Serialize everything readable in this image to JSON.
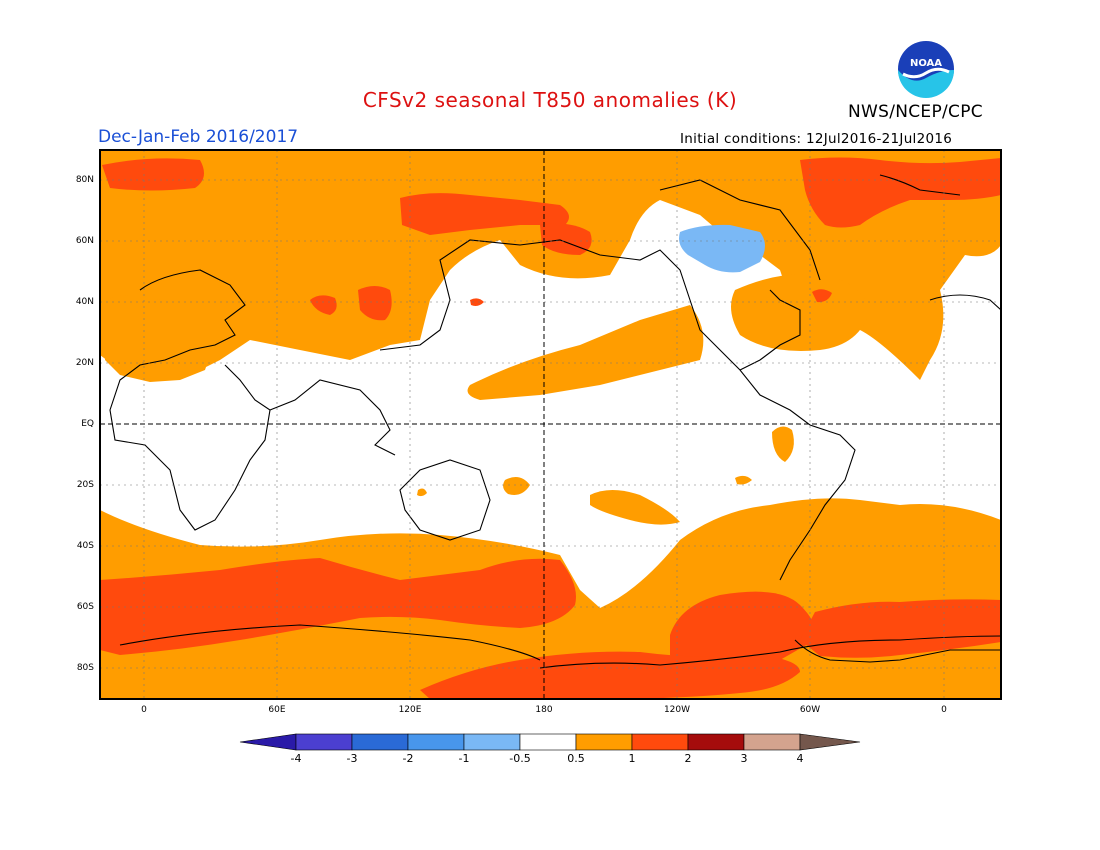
{
  "title": "CFSv2 seasonal T850 anomalies (K)",
  "period": "Dec-Jan-Feb 2016/2017",
  "initial_conditions": "Initial conditions: 12Jul2016-21Jul2016",
  "agency": "NWS/NCEP/CPC",
  "logo_text": "NOAA",
  "colors": {
    "title": "#dd1111",
    "period": "#1a4fd6",
    "below_4": "#2a1aa8",
    "m4_m3": "#4b3fd0",
    "m3_m2": "#2a6ad6",
    "m2_m1": "#4896ec",
    "m1_m05": "#7ab8f5",
    "neutral": "#ffffff",
    "p05_1": "#ff9d00",
    "p1_2": "#ff4a0d",
    "p2_3": "#a50c0c",
    "p3_4": "#d4a38e",
    "above_4": "#74574c"
  },
  "map": {
    "lat_labels": [
      "80N",
      "60N",
      "40N",
      "20N",
      "EQ",
      "20S",
      "40S",
      "60S",
      "80S"
    ],
    "lon_labels": [
      "0",
      "60E",
      "120E",
      "180",
      "120W",
      "60W",
      "0"
    ]
  },
  "colorbar": {
    "labels": [
      "-4",
      "-3",
      "-2",
      "-1",
      "-0.5",
      "0.5",
      "1",
      "2",
      "3",
      "4"
    ]
  }
}
